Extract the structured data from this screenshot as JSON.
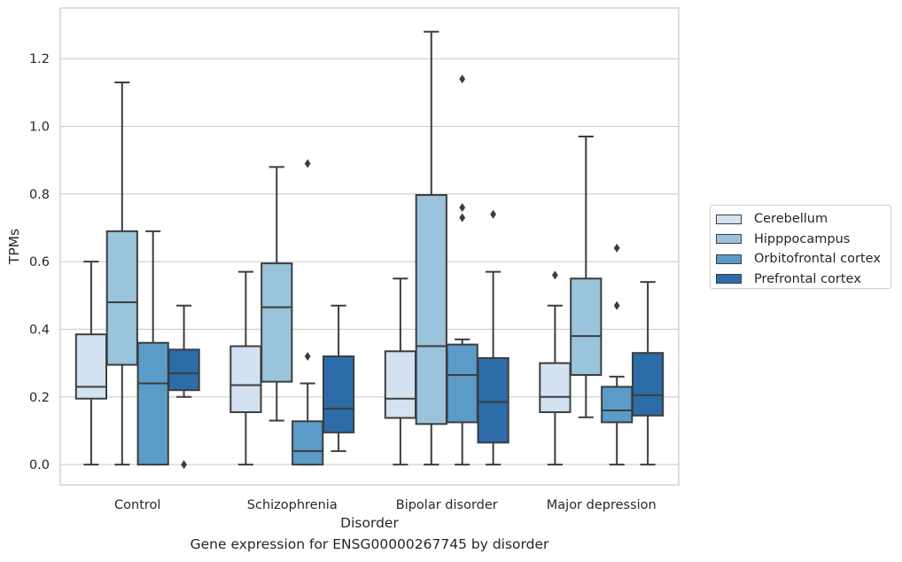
{
  "chart_data": {
    "type": "box",
    "xlabel": "Disorder",
    "ylabel": "TPMs",
    "caption": "Gene expression for ENSG00000267745 by disorder",
    "categories": [
      "Control",
      "Schizophrenia",
      "Bipolar disorder",
      "Major depression"
    ],
    "ylim": [
      -0.06,
      1.35
    ],
    "yticks": [
      "0.0",
      "0.2",
      "0.4",
      "0.6",
      "0.8",
      "1.0",
      "1.2"
    ],
    "grid": "horizontal",
    "legend_position": "right",
    "series": [
      {
        "name": "Cerebellum",
        "color": "#d2e2f1",
        "boxes": [
          {
            "whisker_low": 0.0,
            "q1": 0.195,
            "median": 0.23,
            "q3": 0.385,
            "whisker_high": 0.6,
            "outliers": []
          },
          {
            "whisker_low": 0.0,
            "q1": 0.155,
            "median": 0.235,
            "q3": 0.35,
            "whisker_high": 0.57,
            "outliers": []
          },
          {
            "whisker_low": 0.0,
            "q1": 0.138,
            "median": 0.195,
            "q3": 0.335,
            "whisker_high": 0.55,
            "outliers": []
          },
          {
            "whisker_low": 0.0,
            "q1": 0.155,
            "median": 0.2,
            "q3": 0.3,
            "whisker_high": 0.47,
            "outliers": [
              0.56
            ]
          }
        ]
      },
      {
        "name": "Hipppocampus",
        "color": "#9ac3dc",
        "boxes": [
          {
            "whisker_low": 0.0,
            "q1": 0.295,
            "median": 0.48,
            "q3": 0.69,
            "whisker_high": 1.13,
            "outliers": []
          },
          {
            "whisker_low": 0.13,
            "q1": 0.245,
            "median": 0.465,
            "q3": 0.595,
            "whisker_high": 0.88,
            "outliers": []
          },
          {
            "whisker_low": 0.0,
            "q1": 0.12,
            "median": 0.35,
            "q3": 0.797,
            "whisker_high": 1.28,
            "outliers": []
          },
          {
            "whisker_low": 0.14,
            "q1": 0.265,
            "median": 0.38,
            "q3": 0.55,
            "whisker_high": 0.97,
            "outliers": []
          }
        ]
      },
      {
        "name": "Orbitofrontal cortex",
        "color": "#5b9bc8",
        "boxes": [
          {
            "whisker_low": 0.0,
            "q1": 0.0,
            "median": 0.24,
            "q3": 0.36,
            "whisker_high": 0.69,
            "outliers": []
          },
          {
            "whisker_low": 0.0,
            "q1": 0.0,
            "median": 0.04,
            "q3": 0.128,
            "whisker_high": 0.24,
            "outliers": [
              0.32,
              0.89
            ]
          },
          {
            "whisker_low": 0.0,
            "q1": 0.125,
            "median": 0.265,
            "q3": 0.355,
            "whisker_high": 0.37,
            "outliers": [
              0.73,
              0.76,
              1.14
            ]
          },
          {
            "whisker_low": 0.0,
            "q1": 0.125,
            "median": 0.16,
            "q3": 0.23,
            "whisker_high": 0.26,
            "outliers": [
              0.47,
              0.64
            ]
          }
        ]
      },
      {
        "name": "Prefrontal cortex",
        "color": "#2c6ca9",
        "boxes": [
          {
            "whisker_low": 0.2,
            "q1": 0.22,
            "median": 0.27,
            "q3": 0.34,
            "whisker_high": 0.47,
            "outliers": [
              0.0
            ]
          },
          {
            "whisker_low": 0.04,
            "q1": 0.095,
            "median": 0.165,
            "q3": 0.32,
            "whisker_high": 0.47,
            "outliers": []
          },
          {
            "whisker_low": 0.0,
            "q1": 0.065,
            "median": 0.185,
            "q3": 0.315,
            "whisker_high": 0.57,
            "outliers": [
              0.74
            ]
          },
          {
            "whisker_low": 0.0,
            "q1": 0.145,
            "median": 0.205,
            "q3": 0.33,
            "whisker_high": 0.54,
            "outliers": []
          }
        ]
      }
    ]
  }
}
